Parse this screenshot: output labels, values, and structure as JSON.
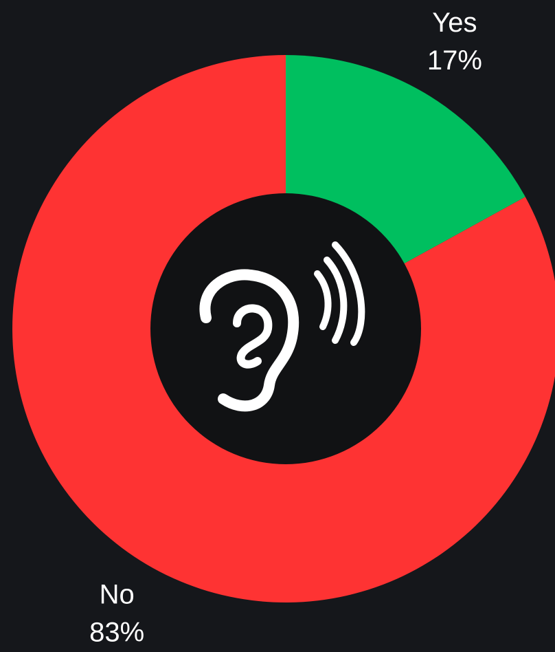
{
  "chart_data": {
    "type": "donut",
    "categories": [
      "Yes",
      "No"
    ],
    "values": [
      17,
      83
    ],
    "value_labels": [
      "17%",
      "83%"
    ],
    "colors": [
      "#00bf5f",
      "#fe3333"
    ]
  }
}
